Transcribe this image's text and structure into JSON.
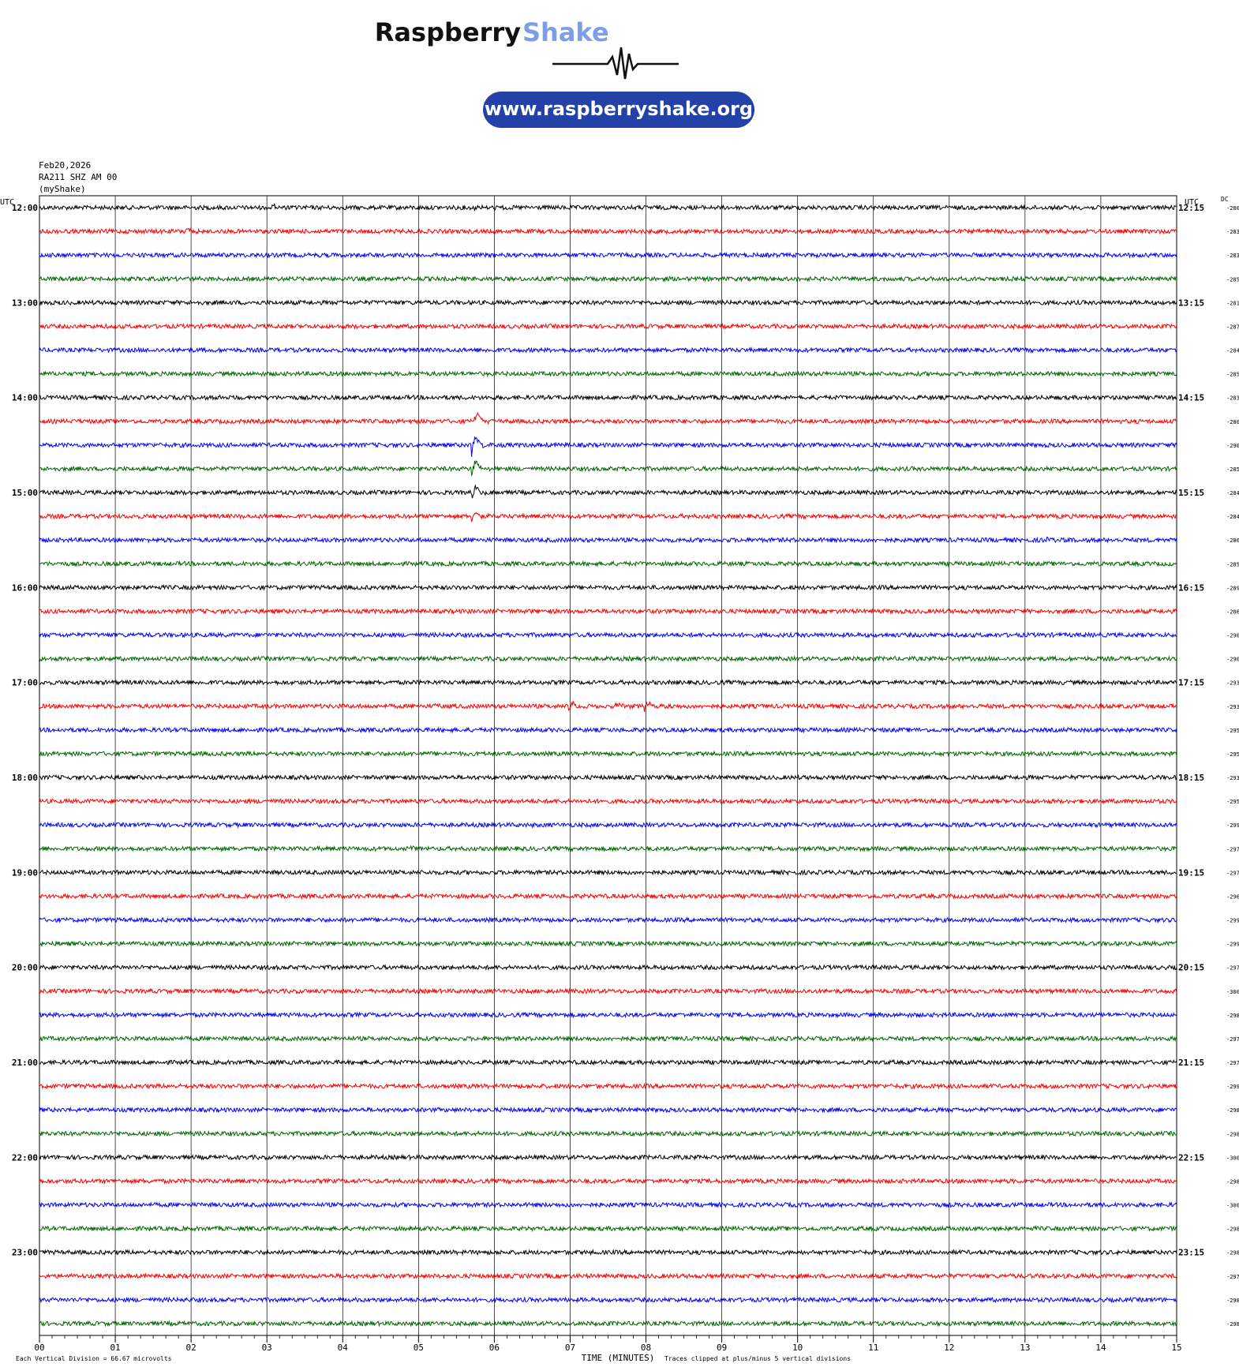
{
  "brand": {
    "name_dark": "Raspberry",
    "name_light": "Shake",
    "url": "www.raspberryshake.org",
    "dark_color": "#111111",
    "light_color": "#7d9ee6",
    "pill_color": "#2341a7"
  },
  "header": {
    "date": "Feb20,2026",
    "station": "RA211 SHZ AM 00",
    "network": "(myShake)",
    "utc_left": "UTC",
    "utc_right": "UTC",
    "dc_label": "DC"
  },
  "footer": {
    "xlabel": "TIME (MINUTES)",
    "scale_note": "Each Vertical Division =   66.67 microvolts",
    "clip_note": "Traces clipped at plus/minus 5 vertical divisions"
  },
  "chart_data": {
    "type": "line",
    "xlabel": "TIME (MINUTES)",
    "x_ticks": [
      "00",
      "01",
      "02",
      "03",
      "04",
      "05",
      "06",
      "07",
      "08",
      "09",
      "10",
      "11",
      "12",
      "13",
      "14",
      "15"
    ],
    "xlim": [
      0,
      15
    ],
    "grid": true,
    "trace_colors": [
      "#000000",
      "#ff0000",
      "#0000ff",
      "#006600"
    ],
    "left_labels": [
      "12:00",
      "13:00",
      "14:00",
      "15:00",
      "16:00",
      "17:00",
      "18:00",
      "19:00",
      "20:00",
      "21:00",
      "22:00",
      "23:00"
    ],
    "right_labels": [
      "12:15",
      "13:15",
      "14:15",
      "15:15",
      "16:15",
      "17:15",
      "18:15",
      "19:15",
      "20:15",
      "21:15",
      "22:15",
      "23:15"
    ],
    "dc_offsets": [
      "-280",
      "-283",
      "-283",
      "-285",
      "-281",
      "-287",
      "-284",
      "-285",
      "-283",
      "-280",
      "-290",
      "-285",
      "-284",
      "-284",
      "-286",
      "-285",
      "-289",
      "-286",
      "-290",
      "-290",
      "-293",
      "-293",
      "-295",
      "-295",
      "-293",
      "-295",
      "-299",
      "-297",
      "-297",
      "-296",
      "-299",
      "-299",
      "-297",
      "-300",
      "-298",
      "-297",
      "-297",
      "-299",
      "-298",
      "-298",
      "-300",
      "-298",
      "-300",
      "-298",
      "-298",
      "-297",
      "-298",
      "-298"
    ],
    "events": [
      {
        "row": 0,
        "minute": 3.06,
        "amplitude": 1.0
      },
      {
        "row": 0,
        "minute": 5.75,
        "amplitude": 0.6
      },
      {
        "row": 1,
        "minute": 1.92,
        "amplitude": 0.6
      },
      {
        "row": 8,
        "minute": 2.35,
        "amplitude": 0.6
      },
      {
        "row": 8,
        "minute": 9.65,
        "amplitude": 0.9
      },
      {
        "row": 9,
        "minute": 5.74,
        "amplitude": 6.0
      },
      {
        "row": 10,
        "minute": 5.72,
        "amplitude": 5.0
      },
      {
        "row": 11,
        "minute": 5.72,
        "amplitude": 4.0
      },
      {
        "row": 12,
        "minute": 5.72,
        "amplitude": 2.5
      },
      {
        "row": 13,
        "minute": 5.72,
        "amplitude": 1.5
      },
      {
        "row": 14,
        "minute": 13.25,
        "amplitude": 0.5
      },
      {
        "row": 21,
        "minute": 5.2,
        "amplitude": 0.9
      },
      {
        "row": 21,
        "minute": 7.0,
        "amplitude": 2.0
      },
      {
        "row": 21,
        "minute": 7.6,
        "amplitude": 1.5
      },
      {
        "row": 21,
        "minute": 8.0,
        "amplitude": 2.0
      },
      {
        "row": 27,
        "minute": 4.88,
        "amplitude": 0.4
      }
    ]
  }
}
